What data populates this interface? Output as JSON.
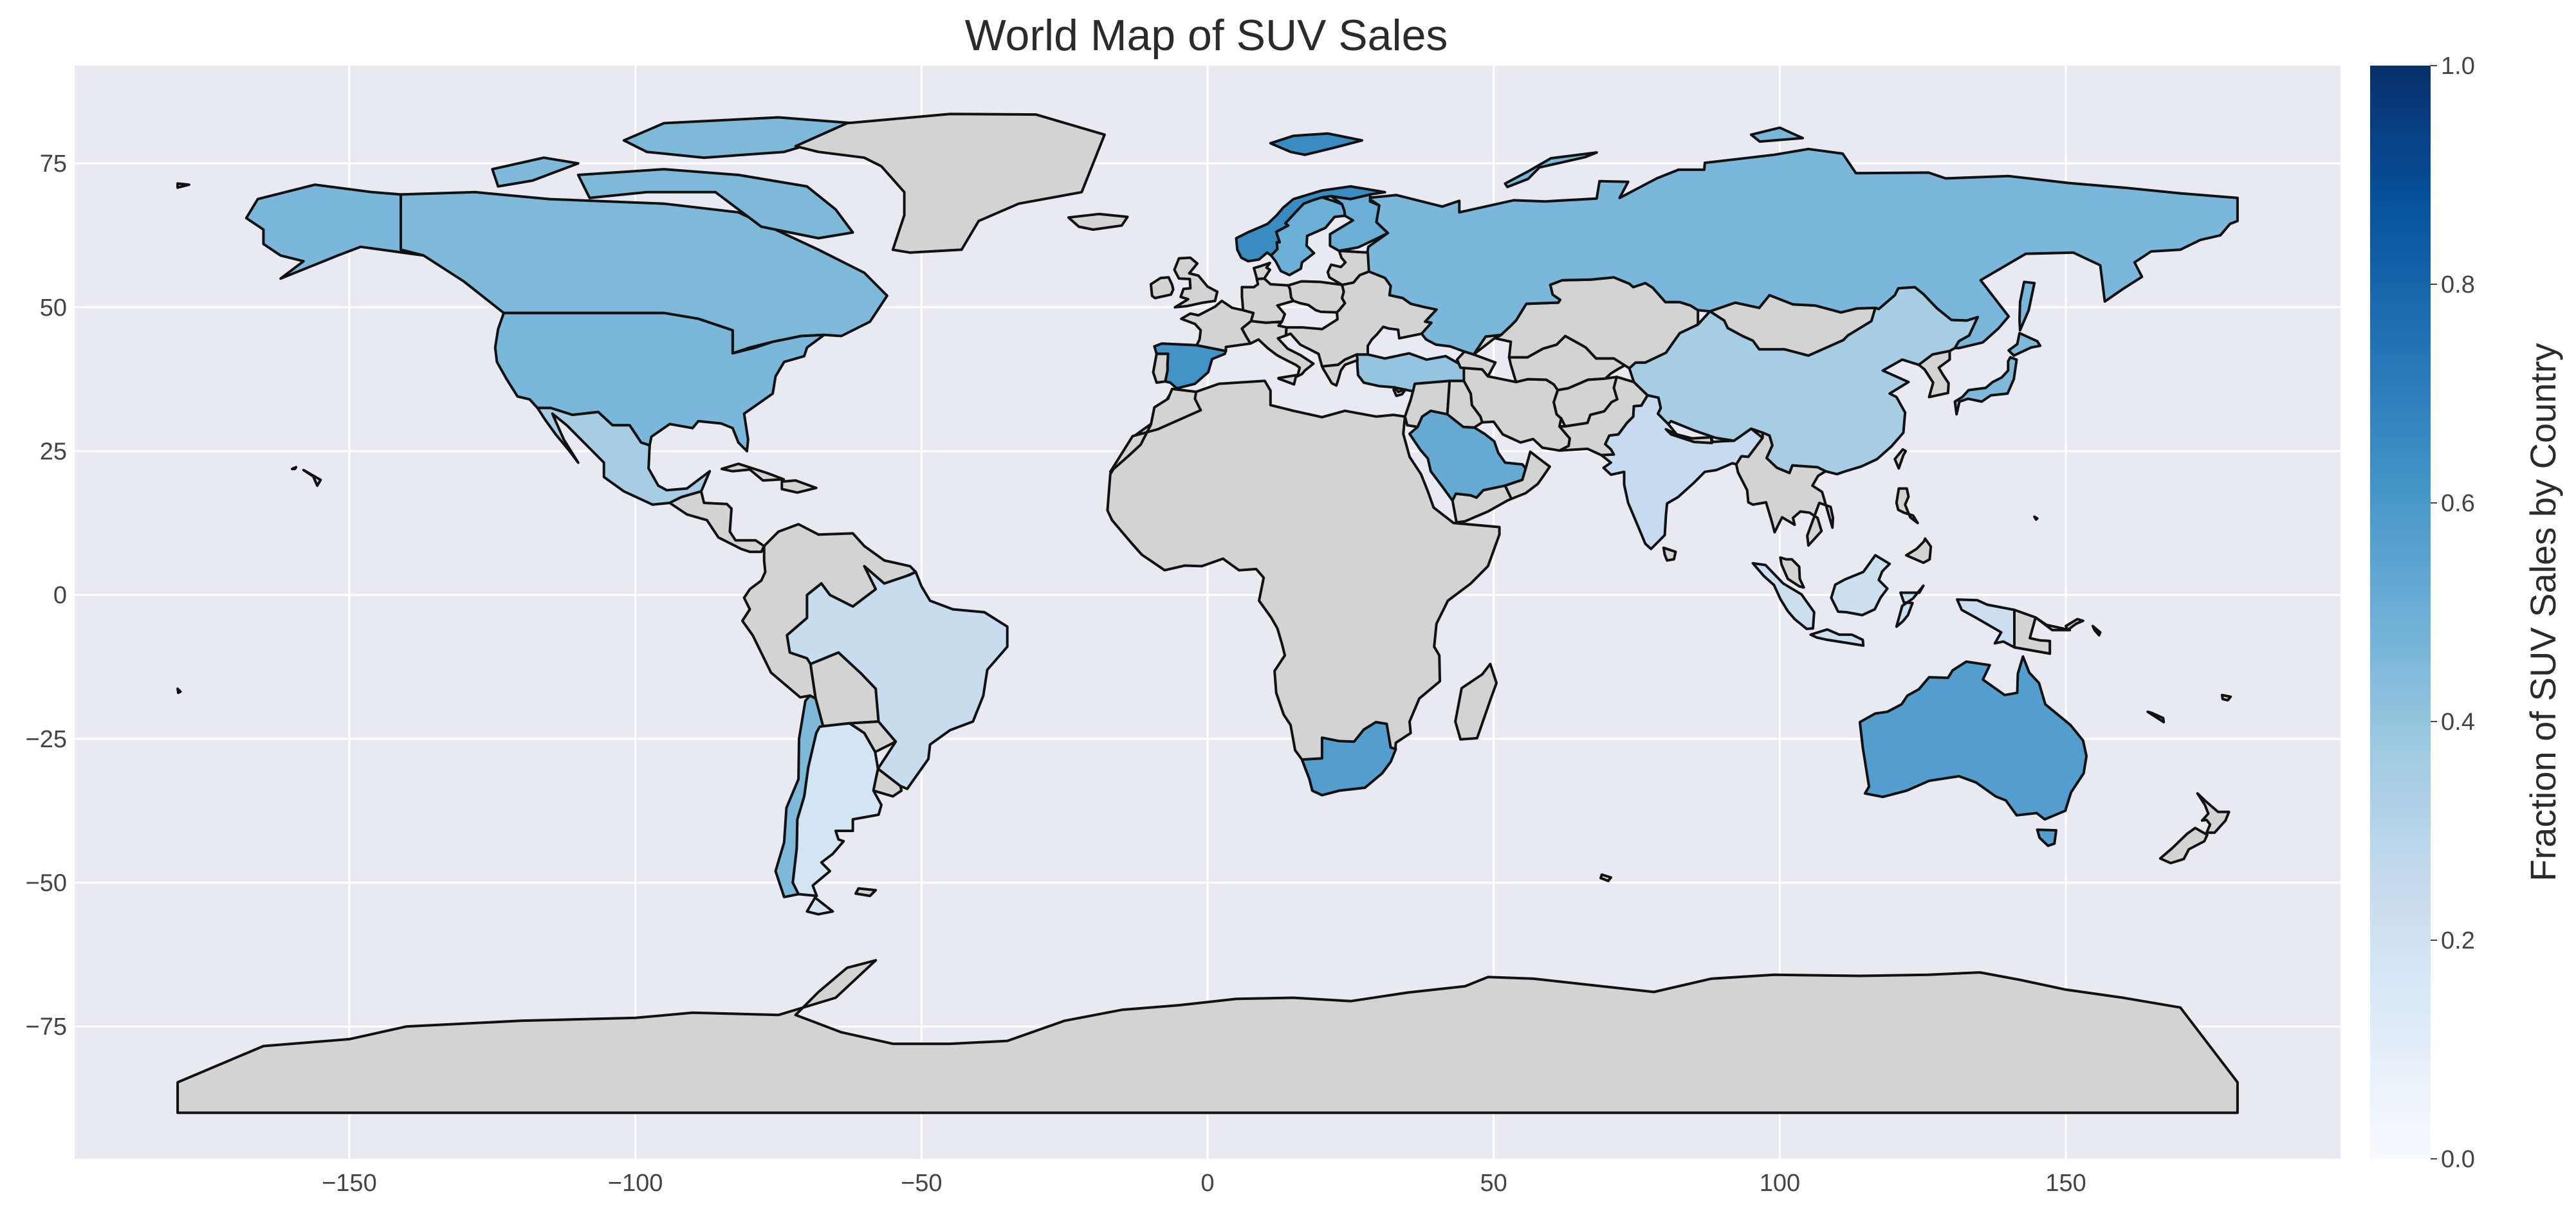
{
  "title": "World Map of SUV Sales",
  "colorbar": {
    "label": "Fraction of SUV Sales by Country",
    "ticks": [
      "0.0",
      "0.2",
      "0.4",
      "0.6",
      "0.8",
      "1.0"
    ],
    "range": [
      0,
      1
    ],
    "colormap": "Blues"
  },
  "axes": {
    "x_ticks": [
      -150,
      -100,
      -50,
      0,
      50,
      100,
      150
    ],
    "y_ticks": [
      75,
      50,
      25,
      0,
      -25,
      -50,
      -75
    ],
    "x_range": [
      -198,
      198
    ],
    "y_range": [
      -98,
      92
    ],
    "grid": true,
    "background": "#e9e9f1",
    "no_data_color": "#d3d3d3"
  },
  "chart_data": {
    "type": "heatmap",
    "title": "World Map of SUV Sales",
    "xlabel": "",
    "ylabel": "",
    "xlim": [
      -198,
      198
    ],
    "ylim": [
      -98,
      92
    ],
    "grid": true,
    "colorbar_label": "Fraction of SUV Sales by Country",
    "countries": [
      {
        "name": "Canada",
        "value": 0.45
      },
      {
        "name": "United States",
        "value": 0.46
      },
      {
        "name": "Mexico",
        "value": 0.35
      },
      {
        "name": "Brazil",
        "value": 0.24
      },
      {
        "name": "Argentina",
        "value": 0.18
      },
      {
        "name": "Chile",
        "value": 0.45
      },
      {
        "name": "Norway",
        "value": 0.65
      },
      {
        "name": "Sweden",
        "value": 0.5
      },
      {
        "name": "Finland",
        "value": 0.5
      },
      {
        "name": "Spain",
        "value": 0.62
      },
      {
        "name": "Russia",
        "value": 0.46
      },
      {
        "name": "Saudi Arabia",
        "value": 0.52
      },
      {
        "name": "China",
        "value": 0.35
      },
      {
        "name": "India",
        "value": 0.25
      },
      {
        "name": "Indonesia",
        "value": 0.22
      },
      {
        "name": "Australia",
        "value": 0.57
      },
      {
        "name": "South Africa",
        "value": 0.57
      },
      {
        "name": "Japan",
        "value": 0.45
      },
      {
        "name": "Turkey",
        "value": 0.4
      },
      {
        "name": "Svalbard",
        "value": 0.65
      }
    ]
  }
}
